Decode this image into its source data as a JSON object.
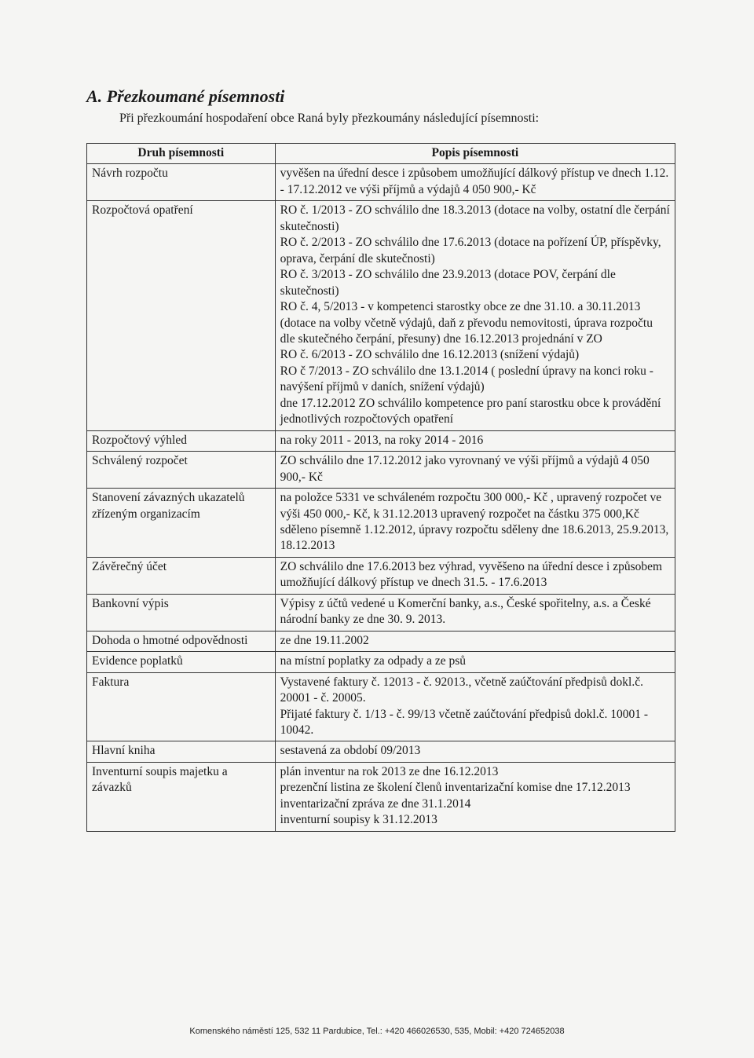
{
  "heading": "A. Přezkoumané písemnosti",
  "intro": "Při přezkoumání hospodaření obce Raná byly přezkoumány následující písemnosti:",
  "table": {
    "header": {
      "type": "Druh písemnosti",
      "desc": "Popis písemnosti"
    },
    "rows": [
      {
        "type": "Návrh rozpočtu",
        "desc": "vyvěšen na úřední desce i způsobem umožňující dálkový přístup ve dnech 1.12. - 17.12.2012 ve výši příjmů a výdajů 4 050 900,- Kč"
      },
      {
        "type": "Rozpočtová opatření",
        "desc": "RO č. 1/2013 - ZO schválilo dne 18.3.2013 (dotace na volby, ostatní dle čerpání skutečnosti)\nRO č. 2/2013 - ZO schválilo dne 17.6.2013 (dotace na pořízení ÚP, příspěvky, oprava, čerpání dle skutečnosti)\nRO č. 3/2013  - ZO schválilo dne 23.9.2013 (dotace POV, čerpání dle skutečnosti)\nRO č. 4, 5/2013 - v kompetenci starostky obce ze dne 31.10. a 30.11.2013 (dotace na volby včetně výdajů, daň z převodu nemovitosti, úprava rozpočtu dle skutečného čerpání, přesuny) dne 16.12.2013 projednání v ZO\nRO č. 6/2013 - ZO schválilo dne 16.12.2013 (snížení výdajů)\nRO č 7/2013 - ZO schválilo dne  13.1.2014 ( poslední úpravy na konci roku - navýšení příjmů v daních, snížení výdajů)\ndne 17.12.2012 ZO schválilo kompetence pro paní starostku obce k provádění jednotlivých rozpočtových opatření"
      },
      {
        "type": "Rozpočtový výhled",
        "desc": "na roky  2011 - 2013, na roky 2014 - 2016"
      },
      {
        "type": "Schválený rozpočet",
        "desc": "ZO schválilo dne 17.12.2012 jako vyrovnaný ve výši příjmů a výdajů 4 050 900,- Kč"
      },
      {
        "type": "Stanovení závazných ukazatelů zřízeným organizacím",
        "desc": "na položce 5331 ve schváleném rozpočtu 300 000,- Kč , upravený rozpočet ve výši 450 000,- Kč, k 31.12.2013 upravený rozpočet na částku 375 000,Kč\nsděleno písemně 1.12.2012, úpravy rozpočtu sděleny dne 18.6.2013, 25.9.2013, 18.12.2013"
      },
      {
        "type": "Závěrečný účet",
        "desc": "ZO schválilo dne 17.6.2013 bez výhrad, vyvěšeno na úřední desce i způsobem umožňující dálkový přístup ve dnech 31.5. - 17.6.2013"
      },
      {
        "type": "Bankovní výpis",
        "desc": "Výpisy z účtů vedené u Komerční banky, a.s., České spořitelny, a.s. a České národní banky ze dne 30. 9. 2013."
      },
      {
        "type": "Dohoda o hmotné odpovědnosti",
        "desc": "ze dne 19.11.2002"
      },
      {
        "type": "Evidence poplatků",
        "desc": "na místní poplatky za odpady a  ze psů"
      },
      {
        "type": "Faktura",
        "desc": "Vystavené faktury č. 12013 - č. 92013., včetně zaúčtování předpisů dokl.č. 20001 - č. 20005.\nPřijaté faktury č. 1/13 - č. 99/13 včetně zaúčtování předpisů dokl.č. 10001 - 10042."
      },
      {
        "type": "Hlavní kniha",
        "desc": "sestavená za období 09/2013"
      },
      {
        "type": "Inventurní soupis majetku a závazků",
        "desc": "plán inventur na rok 2013 ze dne 16.12.2013\nprezenční listina ze školení členů inventarizační komise dne 17.12.2013\ninventarizační zpráva ze dne 31.1.2014\ninventurní soupisy k 31.12.2013"
      }
    ]
  },
  "footer": "Komenského náměstí 125, 532 11 Pardubice, Tel.: +420 466026530, 535, Mobil: +420 724652038"
}
